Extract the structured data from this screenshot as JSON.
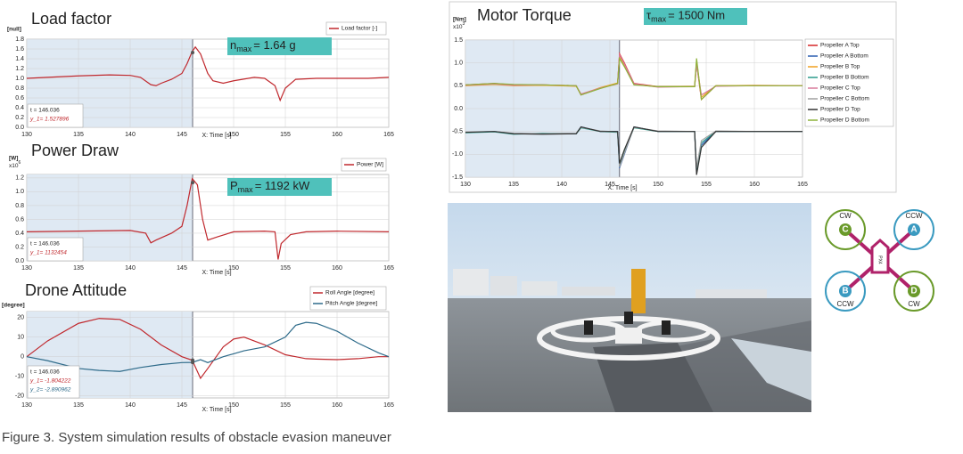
{
  "chart_data": [
    {
      "type": "line",
      "title": "Load factor",
      "y_unit": "[null]",
      "xlabel": "X: Time [s]",
      "grid": true,
      "xlim": [
        130,
        165
      ],
      "xticks": [
        130,
        135,
        140,
        145,
        150,
        155,
        160,
        165
      ],
      "ylim": [
        0,
        1.8
      ],
      "yticks": [
        {
          "value": 0,
          "label": "0.0"
        },
        0.2,
        0.4,
        0.6,
        0.8,
        {
          "value": 1,
          "label": "1.0"
        },
        1.2,
        1.4,
        1.6,
        1.8
      ],
      "x": [
        130,
        132,
        135,
        138,
        140,
        141,
        142,
        142.5,
        143,
        144,
        145,
        145.5,
        146,
        146.3,
        146.8,
        147.5,
        148,
        149,
        150,
        152,
        153,
        154,
        154.5,
        155,
        156,
        158,
        160,
        163,
        165
      ],
      "series": [
        {
          "name": "Load factor [-]",
          "color": "#c0282d",
          "values": [
            1.0,
            1.02,
            1.05,
            1.07,
            1.06,
            1.02,
            0.87,
            0.85,
            0.9,
            0.98,
            1.1,
            1.3,
            1.55,
            1.64,
            1.5,
            1.1,
            0.95,
            0.9,
            0.95,
            1.02,
            1.0,
            0.85,
            0.55,
            0.8,
            0.98,
            1.0,
            1.0,
            1.0,
            1.02
          ]
        }
      ],
      "annotation": {
        "symbol": "n",
        "subscript": "max",
        "text": "= 1.64 g"
      },
      "cursor": {
        "value": 146.036,
        "label": "t    = 146.036"
      },
      "cursor_readouts": [
        {
          "value": 1.527896,
          "label": "y_1= 1.527896"
        }
      ]
    },
    {
      "type": "line",
      "title": "Power Draw",
      "y_unit": "[W]",
      "y_multiplier": {
        "base": "x10",
        "power": "6"
      },
      "xlabel": "X: Time [s]",
      "grid": true,
      "xlim": [
        130,
        165
      ],
      "xticks": [
        130,
        135,
        140,
        145,
        150,
        155,
        160,
        165
      ],
      "ylim": [
        0,
        1.25
      ],
      "yticks": [
        {
          "value": 0,
          "label": "0.0"
        },
        0.2,
        0.4,
        0.6,
        0.8,
        {
          "value": 1,
          "label": "1.0"
        },
        1.2
      ],
      "x": [
        130,
        135,
        140,
        141.5,
        142,
        142.5,
        144,
        145,
        145.5,
        146,
        146.5,
        147,
        147.5,
        148.5,
        150,
        153,
        154,
        154.3,
        154.6,
        155.5,
        157,
        160,
        165
      ],
      "series": [
        {
          "name": "Power [W]",
          "color": "#c0282d",
          "values": [
            0.42,
            0.43,
            0.44,
            0.4,
            0.26,
            0.3,
            0.4,
            0.5,
            0.8,
            1.19,
            1.1,
            0.6,
            0.3,
            0.35,
            0.42,
            0.43,
            0.42,
            0.02,
            0.25,
            0.38,
            0.42,
            0.43,
            0.42
          ]
        }
      ],
      "annotation": {
        "symbol": "P",
        "subscript": "max",
        "text": "= 1192 kW"
      },
      "cursor": {
        "value": 146.036,
        "label": "t    = 146.036"
      },
      "cursor_readouts": [
        {
          "value": 1.132454,
          "label": "y_1= 1132454"
        }
      ]
    },
    {
      "type": "line",
      "title": "Drone Attitude",
      "y_unit": "[degree]",
      "xlabel": "X: Time [s]",
      "grid": true,
      "xlim": [
        130,
        165
      ],
      "xticks": [
        130,
        135,
        140,
        145,
        150,
        155,
        160,
        165
      ],
      "ylim": [
        -21,
        23
      ],
      "yticks": [
        -20,
        -10,
        0,
        10,
        20
      ],
      "x": [
        130,
        132,
        135,
        137,
        139,
        141,
        143,
        145,
        146,
        146.8,
        147.5,
        149,
        150,
        151,
        153,
        155,
        156,
        157,
        158,
        160,
        162,
        164,
        165
      ],
      "series": [
        {
          "name": "Roll Angle [degree]",
          "color": "#c0282d",
          "values": [
            0,
            8,
            17,
            19.5,
            19,
            14,
            6,
            0,
            -1.8,
            -11,
            -6,
            5,
            9,
            10,
            6,
            1,
            0,
            -1,
            -1.2,
            -1.5,
            -1,
            0,
            0
          ]
        },
        {
          "name": "Pitch Angle [degree]",
          "color": "#2e6b8a",
          "values": [
            0,
            -2,
            -6,
            -7,
            -7.5,
            -5.5,
            -4,
            -3,
            -2.9,
            -1.5,
            -3,
            0,
            1.5,
            3,
            5,
            10,
            16,
            17.5,
            17,
            13,
            7,
            2,
            0
          ]
        }
      ],
      "cursor": {
        "value": 146.036,
        "label": "t    = 146.036"
      },
      "cursor_readouts": [
        {
          "value": -1.804222,
          "label": "y_1= -1.804222"
        },
        {
          "value": -2.890962,
          "label": "y_2= -2.890962"
        }
      ]
    },
    {
      "type": "line",
      "title": "Motor Torque",
      "y_unit": "[Nm]",
      "y_multiplier": {
        "base": "x10",
        "power": "3"
      },
      "xlabel": "X: Time [s]",
      "grid": true,
      "xlim": [
        130,
        165
      ],
      "xticks": [
        130,
        135,
        140,
        145,
        150,
        155,
        160,
        165
      ],
      "ylim": [
        -1.5,
        1.5
      ],
      "yticks": [
        -1.5,
        {
          "value": -1,
          "label": "-1.0"
        },
        -0.5,
        {
          "value": 0,
          "label": "0.0"
        },
        0.5,
        {
          "value": 1,
          "label": "1.0"
        },
        1.5
      ],
      "x": [
        130,
        133,
        135,
        138,
        141.5,
        142,
        144,
        145.8,
        146,
        146.5,
        147.5,
        150,
        153.8,
        154,
        154.5,
        156,
        160,
        165
      ],
      "series": [
        {
          "name": "Propeller A Top",
          "color": "#d62728",
          "values": [
            0.52,
            0.55,
            0.52,
            0.52,
            0.5,
            0.3,
            0.45,
            0.55,
            1.2,
            1.0,
            0.55,
            0.48,
            0.48,
            1.0,
            0.2,
            0.5,
            0.5,
            0.5
          ]
        },
        {
          "name": "Propeller A Bottom",
          "color": "#2a5db0",
          "values": [
            -0.52,
            -0.5,
            -0.55,
            -0.55,
            -0.55,
            -0.4,
            -0.5,
            -0.5,
            -1.3,
            -1.0,
            -0.4,
            -0.5,
            -0.5,
            -1.4,
            -0.8,
            -0.5,
            -0.5,
            -0.5
          ]
        },
        {
          "name": "Propeller B Top",
          "color": "#f0a020",
          "values": [
            0.5,
            0.53,
            0.5,
            0.51,
            0.49,
            0.31,
            0.46,
            0.56,
            1.15,
            0.95,
            0.53,
            0.48,
            0.49,
            1.05,
            0.25,
            0.5,
            0.51,
            0.5
          ]
        },
        {
          "name": "Propeller B Bottom",
          "color": "#2a9a8a",
          "values": [
            -0.53,
            -0.51,
            -0.56,
            -0.54,
            -0.55,
            -0.42,
            -0.5,
            -0.52,
            -1.25,
            -0.95,
            -0.42,
            -0.5,
            -0.5,
            -1.35,
            -0.75,
            -0.5,
            -0.5,
            -0.5
          ]
        },
        {
          "name": "Propeller C Top",
          "color": "#d87a9a",
          "values": [
            0.51,
            0.54,
            0.51,
            0.52,
            0.5,
            0.32,
            0.45,
            0.54,
            1.18,
            0.98,
            0.54,
            0.47,
            0.48,
            0.95,
            0.3,
            0.49,
            0.5,
            0.5
          ]
        },
        {
          "name": "Propeller C Bottom",
          "color": "#a0a0a0",
          "values": [
            -0.51,
            -0.5,
            -0.54,
            -0.55,
            -0.54,
            -0.41,
            -0.49,
            -0.51,
            -1.28,
            -0.98,
            -0.41,
            -0.49,
            -0.5,
            -1.3,
            -0.7,
            -0.49,
            -0.5,
            -0.5
          ]
        },
        {
          "name": "Propeller D Top",
          "color": "#333333",
          "values": [
            -0.52,
            -0.5,
            -0.55,
            -0.56,
            -0.55,
            -0.4,
            -0.5,
            -0.5,
            -1.2,
            -0.9,
            -0.4,
            -0.5,
            -0.5,
            -1.45,
            -0.85,
            -0.5,
            -0.5,
            -0.5
          ]
        },
        {
          "name": "Propeller D Bottom",
          "color": "#8db33a",
          "values": [
            0.52,
            0.55,
            0.53,
            0.52,
            0.5,
            0.3,
            0.44,
            0.55,
            1.1,
            0.92,
            0.52,
            0.48,
            0.48,
            1.1,
            0.2,
            0.5,
            0.5,
            0.5
          ]
        }
      ],
      "annotation": {
        "symbol": "τ",
        "subscript": "max",
        "text": "=  1500 Nm"
      },
      "cursor": 146
    }
  ],
  "diagram": {
    "center": "PX4",
    "rotors": [
      {
        "letter": "C",
        "direction": "CW"
      },
      {
        "letter": "A",
        "direction": "CCW"
      },
      {
        "letter": "B",
        "direction": "CCW"
      },
      {
        "letter": "D",
        "direction": "CW"
      }
    ]
  },
  "caption": "Figure 3. System simulation results of obstacle evasion maneuver"
}
